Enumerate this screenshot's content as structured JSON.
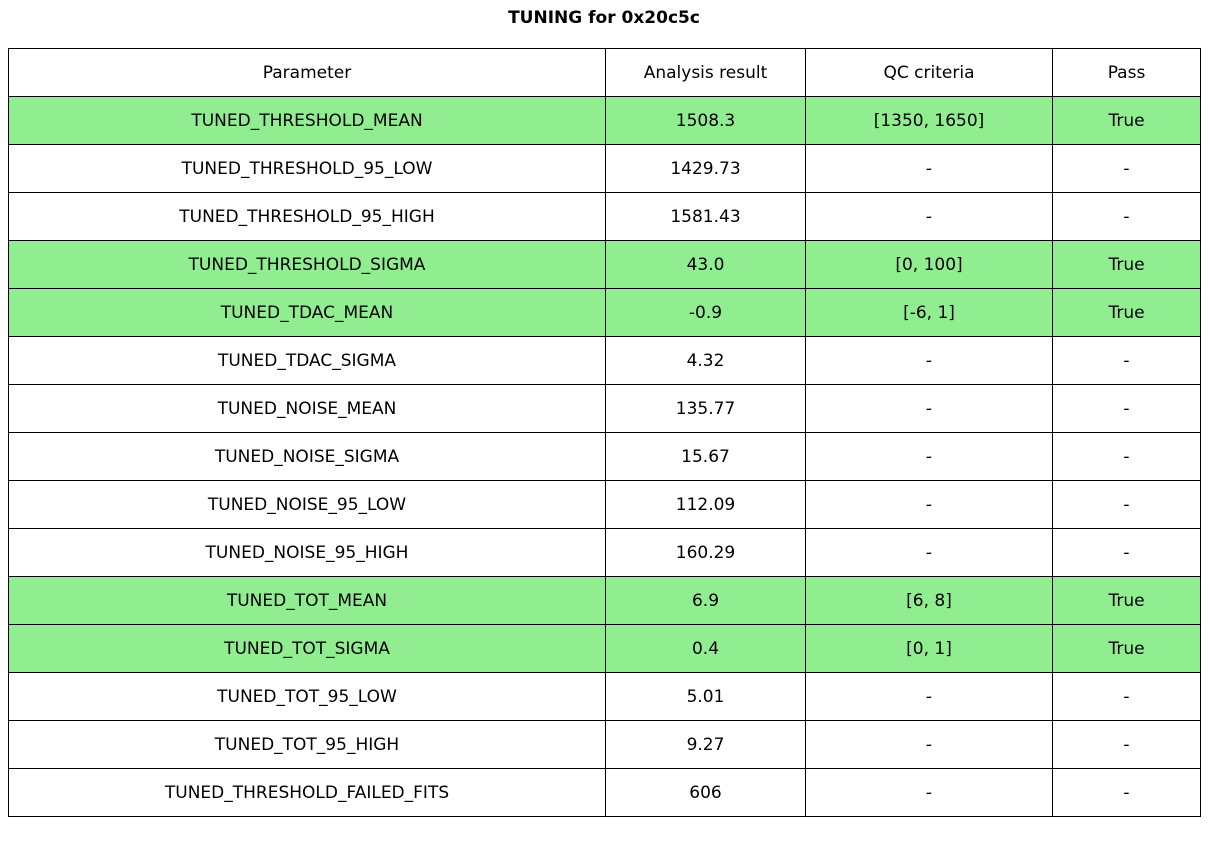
{
  "title": "TUNING for 0x20c5c",
  "colors": {
    "highlight_green": "#90EE90",
    "border": "#000000",
    "background": "#ffffff",
    "text": "#000000"
  },
  "chart_data": {
    "type": "table",
    "title": "TUNING for 0x20c5c",
    "columns": [
      "Parameter",
      "Analysis result",
      "QC criteria",
      "Pass"
    ],
    "rows": [
      {
        "cells": [
          "TUNED_THRESHOLD_MEAN",
          "1508.3",
          "[1350, 1650]",
          "True"
        ],
        "highlight": true
      },
      {
        "cells": [
          "TUNED_THRESHOLD_95_LOW",
          "1429.73",
          "-",
          "-"
        ],
        "highlight": false
      },
      {
        "cells": [
          "TUNED_THRESHOLD_95_HIGH",
          "1581.43",
          "-",
          "-"
        ],
        "highlight": false
      },
      {
        "cells": [
          "TUNED_THRESHOLD_SIGMA",
          "43.0",
          "[0, 100]",
          "True"
        ],
        "highlight": true
      },
      {
        "cells": [
          "TUNED_TDAC_MEAN",
          "-0.9",
          "[-6, 1]",
          "True"
        ],
        "highlight": true
      },
      {
        "cells": [
          "TUNED_TDAC_SIGMA",
          "4.32",
          "-",
          "-"
        ],
        "highlight": false
      },
      {
        "cells": [
          "TUNED_NOISE_MEAN",
          "135.77",
          "-",
          "-"
        ],
        "highlight": false
      },
      {
        "cells": [
          "TUNED_NOISE_SIGMA",
          "15.67",
          "-",
          "-"
        ],
        "highlight": false
      },
      {
        "cells": [
          "TUNED_NOISE_95_LOW",
          "112.09",
          "-",
          "-"
        ],
        "highlight": false
      },
      {
        "cells": [
          "TUNED_NOISE_95_HIGH",
          "160.29",
          "-",
          "-"
        ],
        "highlight": false
      },
      {
        "cells": [
          "TUNED_TOT_MEAN",
          "6.9",
          "[6, 8]",
          "True"
        ],
        "highlight": true
      },
      {
        "cells": [
          "TUNED_TOT_SIGMA",
          "0.4",
          "[0, 1]",
          "True"
        ],
        "highlight": true
      },
      {
        "cells": [
          "TUNED_TOT_95_LOW",
          "5.01",
          "-",
          "-"
        ],
        "highlight": false
      },
      {
        "cells": [
          "TUNED_TOT_95_HIGH",
          "9.27",
          "-",
          "-"
        ],
        "highlight": false
      },
      {
        "cells": [
          "TUNED_THRESHOLD_FAILED_FITS",
          "606",
          "-",
          "-"
        ],
        "highlight": false
      }
    ]
  }
}
